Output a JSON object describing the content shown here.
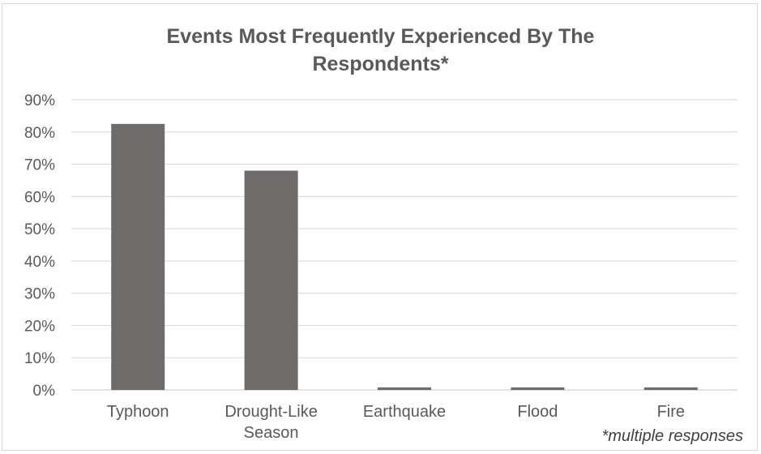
{
  "chart_data": {
    "type": "bar",
    "title_line1": "Events Most Frequently Experienced By The",
    "title_line2": "Respondents*",
    "categories": [
      "Typhoon",
      "Drought-Like Season",
      "Earthquake",
      "Flood",
      "Fire"
    ],
    "category_lines": [
      [
        "Typhoon"
      ],
      [
        "Drought-Like",
        "Season"
      ],
      [
        "Earthquake"
      ],
      [
        "Flood"
      ],
      [
        "Fire"
      ]
    ],
    "values": [
      82.5,
      68,
      0.8,
      0.8,
      0.8
    ],
    "y_ticks": [
      "0%",
      "10%",
      "20%",
      "30%",
      "40%",
      "50%",
      "60%",
      "70%",
      "80%",
      "90%"
    ],
    "ylim": [
      0,
      90
    ],
    "xlabel": "",
    "ylabel": "",
    "grid": true,
    "legend": "none",
    "bar_color": "#6f6b6b",
    "grid_color": "#d9d9d9",
    "footnote": "*multiple responses"
  }
}
